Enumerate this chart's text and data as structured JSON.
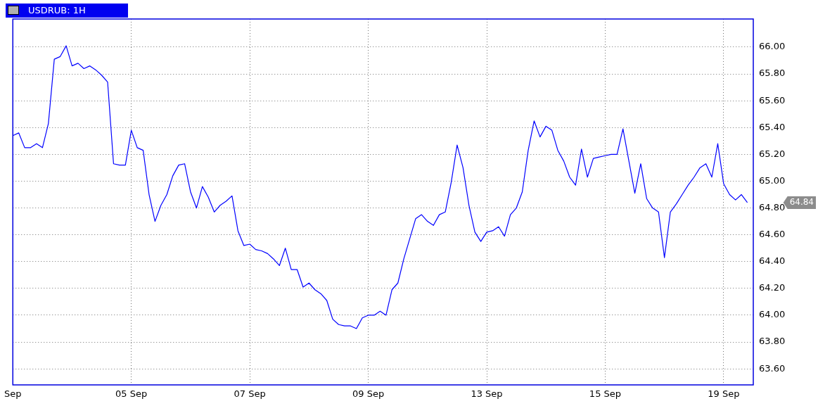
{
  "chart_data": {
    "type": "line",
    "title": "USDRUB: 1H",
    "categories": [
      "Sep",
      null,
      null,
      null,
      null,
      null,
      null,
      null,
      null,
      null,
      null,
      null,
      null,
      null,
      null,
      null,
      null,
      null,
      null,
      null,
      "05 Sep",
      null,
      null,
      null,
      null,
      null,
      null,
      null,
      null,
      null,
      null,
      null,
      null,
      null,
      null,
      null,
      null,
      null,
      null,
      null,
      "07 Sep",
      null,
      null,
      null,
      null,
      null,
      null,
      null,
      null,
      null,
      null,
      null,
      null,
      null,
      null,
      null,
      null,
      null,
      null,
      null,
      "09 Sep",
      null,
      null,
      null,
      null,
      null,
      null,
      null,
      null,
      null,
      null,
      null,
      null,
      null,
      null,
      null,
      null,
      null,
      null,
      null,
      "13 Sep",
      null,
      null,
      null,
      null,
      null,
      null,
      null,
      null,
      null,
      null,
      null,
      null,
      null,
      null,
      null,
      null,
      null,
      null,
      null,
      "15 Sep",
      null,
      null,
      null,
      null,
      null,
      null,
      null,
      null,
      null,
      null,
      null,
      null,
      null,
      null,
      null,
      null,
      null,
      null,
      null,
      "19 Sep",
      null,
      null,
      null,
      null,
      null
    ],
    "series": [
      {
        "color": "#0000ff",
        "values": [
          65.34,
          65.36,
          65.25,
          65.25,
          65.28,
          65.25,
          65.43,
          65.91,
          65.93,
          66.01,
          65.86,
          65.88,
          65.84,
          65.86,
          65.83,
          65.79,
          65.74,
          65.13,
          65.12,
          65.12,
          65.38,
          65.25,
          65.23,
          64.9,
          64.7,
          64.82,
          64.9,
          65.04,
          65.12,
          65.13,
          64.92,
          64.8,
          64.96,
          64.88,
          64.77,
          64.82,
          64.85,
          64.89,
          64.63,
          64.52,
          64.53,
          64.49,
          64.48,
          64.46,
          64.42,
          64.37,
          64.5,
          64.34,
          64.34,
          64.21,
          64.24,
          64.19,
          64.16,
          64.11,
          63.97,
          63.93,
          63.92,
          63.92,
          63.9,
          63.98,
          64.0,
          64.0,
          64.03,
          64.0,
          64.19,
          64.24,
          64.42,
          64.57,
          64.72,
          64.75,
          64.7,
          64.67,
          64.75,
          64.77,
          64.99,
          65.27,
          65.1,
          64.82,
          64.62,
          64.55,
          64.62,
          64.63,
          64.66,
          64.59,
          64.75,
          64.8,
          64.92,
          65.23,
          65.45,
          65.33,
          65.41,
          65.38,
          65.23,
          65.15,
          65.03,
          64.97,
          65.24,
          65.03,
          65.17,
          65.18,
          65.19,
          65.2,
          65.2,
          65.39,
          65.15,
          64.91,
          65.13,
          64.87,
          64.8,
          64.77,
          64.43,
          64.77,
          64.83,
          64.9,
          64.97,
          65.03,
          65.1,
          65.13,
          65.03,
          65.28,
          64.98,
          64.9,
          64.86,
          64.9,
          64.84,
          null
        ]
      }
    ],
    "ylim": [
      63.48,
      66.21
    ],
    "yticks": [
      {
        "value": 63.6,
        "label": "63.60"
      },
      {
        "value": 63.8,
        "label": "63.80"
      },
      {
        "value": 64,
        "label": "64.00"
      },
      {
        "value": 64.2,
        "label": "64.20"
      },
      {
        "value": 64.4,
        "label": "64.40"
      },
      {
        "value": 64.6,
        "label": "64.60"
      },
      {
        "value": 64.8,
        "label": "64.80"
      },
      {
        "value": 65,
        "label": "65.00"
      },
      {
        "value": 65.2,
        "label": "65.20"
      },
      {
        "value": 65.4,
        "label": "65.40"
      },
      {
        "value": 65.6,
        "label": "65.60"
      },
      {
        "value": 65.8,
        "label": "65.80"
      },
      {
        "value": 66,
        "label": "66.00"
      }
    ],
    "annotations": [
      "64.84"
    ],
    "grid": true,
    "marker": "none",
    "line_style": "solid"
  }
}
